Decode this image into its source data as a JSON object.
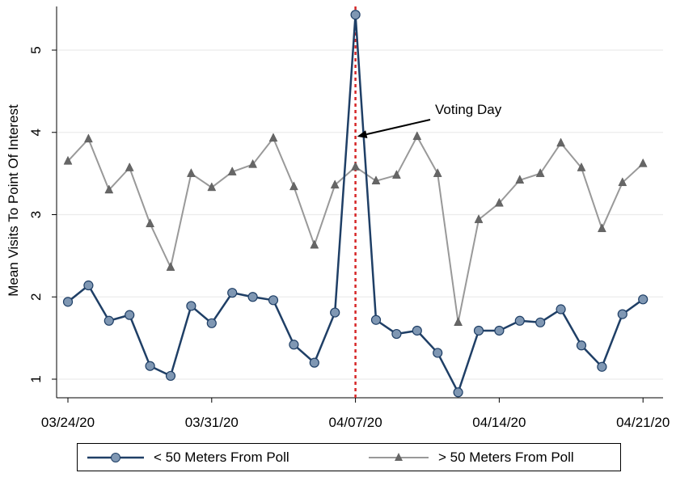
{
  "chart_data": {
    "type": "line",
    "ylabel": "Mean Visits To Point Of Interest",
    "xlabel": "",
    "ylim": [
      0.75,
      5.6
    ],
    "yticks": [
      1,
      2,
      3,
      4,
      5
    ],
    "xticks": [
      {
        "index": 0,
        "label": "03/24/20"
      },
      {
        "index": 7,
        "label": "03/31/20"
      },
      {
        "index": 14,
        "label": "04/07/20"
      },
      {
        "index": 21,
        "label": "04/14/20"
      },
      {
        "index": 28,
        "label": "04/21/20"
      }
    ],
    "grid": true,
    "legend_position": "bottom",
    "vline": {
      "index": 14,
      "color": "#d62728",
      "style": "dotted"
    },
    "annotation": {
      "text": "Voting Day",
      "points_to": {
        "index": 14,
        "y": 3.95
      }
    },
    "series": [
      {
        "name": "< 50 Meters From Poll",
        "color": "#1f3f66",
        "marker": "circle",
        "values": [
          1.94,
          2.14,
          1.71,
          1.78,
          1.16,
          1.04,
          1.89,
          1.68,
          2.05,
          2.0,
          1.96,
          1.42,
          1.2,
          1.81,
          5.43,
          1.72,
          1.55,
          1.59,
          1.32,
          0.84,
          1.59,
          1.59,
          1.71,
          1.69,
          1.85,
          1.41,
          1.15,
          1.79,
          1.97
        ]
      },
      {
        "name": "> 50 Meters From Poll",
        "color": "#999999",
        "marker": "triangle",
        "values": [
          3.65,
          3.92,
          3.3,
          3.57,
          2.89,
          2.36,
          3.5,
          3.33,
          3.52,
          3.61,
          3.93,
          3.34,
          2.63,
          3.36,
          3.58,
          3.41,
          3.48,
          3.95,
          3.5,
          1.69,
          2.94,
          3.14,
          3.42,
          3.5,
          3.87,
          3.57,
          2.83,
          3.39,
          3.62
        ]
      }
    ]
  }
}
